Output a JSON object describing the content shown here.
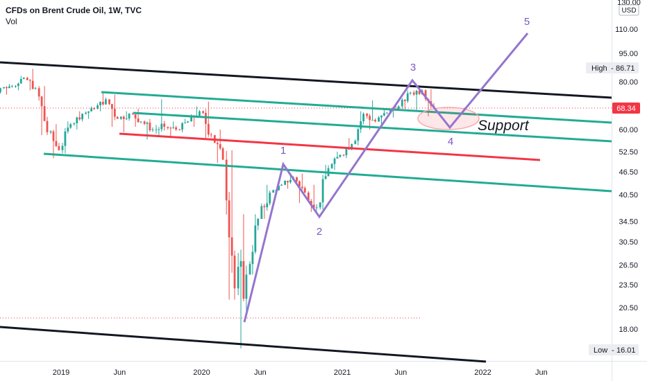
{
  "legend": {
    "title": "CFDs on Brent Crude Oil, 1W, TVC",
    "indicator": "Vol"
  },
  "price_axis": {
    "currency": "USD",
    "top_label": "130.00",
    "ticks": [
      "110.00",
      "95.00",
      "80.00",
      "60.00",
      "52.50",
      "46.50",
      "40.50",
      "34.50",
      "30.50",
      "26.50",
      "23.50",
      "20.50",
      "18.00"
    ]
  },
  "badges": {
    "high": {
      "label": "High",
      "value": "86.71"
    },
    "last": {
      "value": "68.34"
    },
    "low": {
      "label": "Low",
      "value": "16.01"
    }
  },
  "time_axis": {
    "labels": [
      "2019",
      "Jun",
      "2020",
      "Jun",
      "2021",
      "Jun",
      "2022",
      "Jun"
    ]
  },
  "annotations": {
    "support_text": "Support",
    "wave_labels": [
      "1",
      "2",
      "3",
      "4",
      "5"
    ]
  },
  "colors": {
    "up": "#26a69a",
    "down": "#ef5350",
    "wave": "#9575cd",
    "channel": "#131722",
    "teal_line": "#22ab94",
    "red_line": "#f23645",
    "last_badge": "#f23645"
  },
  "chart_data": {
    "type": "candlestick",
    "scale": "log",
    "x_range": [
      "2018-06",
      "2022-08"
    ],
    "y_range": [
      16,
      130
    ],
    "series": [
      {
        "values": [
          {
            "t": "2018-07",
            "o": 74,
            "h": 79,
            "l": 72,
            "c": 77
          },
          {
            "t": "2018-08",
            "o": 77,
            "h": 79,
            "l": 74,
            "c": 78
          },
          {
            "t": "2018-09",
            "o": 78,
            "h": 83,
            "l": 76,
            "c": 82
          },
          {
            "t": "2018-10",
            "o": 82,
            "h": 86.5,
            "l": 76,
            "c": 77
          },
          {
            "t": "2018-11",
            "o": 77,
            "h": 78,
            "l": 58,
            "c": 59
          },
          {
            "t": "2018-12",
            "o": 59,
            "h": 62,
            "l": 50.5,
            "c": 53
          },
          {
            "t": "2019-01",
            "o": 53,
            "h": 63,
            "l": 52,
            "c": 62
          },
          {
            "t": "2019-02",
            "o": 62,
            "h": 67,
            "l": 60,
            "c": 66
          },
          {
            "t": "2019-03",
            "o": 66,
            "h": 69,
            "l": 64,
            "c": 68
          },
          {
            "t": "2019-04",
            "o": 68,
            "h": 75,
            "l": 67,
            "c": 72
          },
          {
            "t": "2019-05",
            "o": 72,
            "h": 74,
            "l": 61,
            "c": 64
          },
          {
            "t": "2019-06",
            "o": 64,
            "h": 67,
            "l": 59,
            "c": 66
          },
          {
            "t": "2019-07",
            "o": 66,
            "h": 68,
            "l": 61,
            "c": 63
          },
          {
            "t": "2019-08",
            "o": 63,
            "h": 64,
            "l": 56.5,
            "c": 60
          },
          {
            "t": "2019-09",
            "o": 60,
            "h": 72,
            "l": 58,
            "c": 61
          },
          {
            "t": "2019-10",
            "o": 61,
            "h": 63,
            "l": 57,
            "c": 60
          },
          {
            "t": "2019-11",
            "o": 60,
            "h": 64,
            "l": 59,
            "c": 63
          },
          {
            "t": "2019-12",
            "o": 63,
            "h": 69,
            "l": 61,
            "c": 67
          },
          {
            "t": "2020-01",
            "o": 67,
            "h": 71,
            "l": 57,
            "c": 58
          },
          {
            "t": "2020-02",
            "o": 58,
            "h": 60,
            "l": 49,
            "c": 50
          },
          {
            "t": "2020-03",
            "o": 50,
            "h": 53,
            "l": 21.5,
            "c": 23
          },
          {
            "t": "2020-04",
            "o": 23,
            "h": 36,
            "l": 16.01,
            "c": 25
          },
          {
            "t": "2020-05",
            "o": 25,
            "h": 36,
            "l": 25,
            "c": 35
          },
          {
            "t": "2020-06",
            "o": 35,
            "h": 43,
            "l": 35,
            "c": 41
          },
          {
            "t": "2020-07",
            "o": 41,
            "h": 44,
            "l": 41,
            "c": 43
          },
          {
            "t": "2020-08",
            "o": 43,
            "h": 46,
            "l": 42,
            "c": 45
          },
          {
            "t": "2020-09",
            "o": 45,
            "h": 46,
            "l": 38.5,
            "c": 41
          },
          {
            "t": "2020-10",
            "o": 41,
            "h": 43,
            "l": 36.5,
            "c": 37.5
          },
          {
            "t": "2020-11",
            "o": 37.5,
            "h": 48.5,
            "l": 37,
            "c": 47.5
          },
          {
            "t": "2020-12",
            "o": 47.5,
            "h": 52.5,
            "l": 47,
            "c": 51.5
          },
          {
            "t": "2021-01",
            "o": 51.5,
            "h": 57,
            "l": 50.5,
            "c": 55
          },
          {
            "t": "2021-02",
            "o": 55,
            "h": 67,
            "l": 54.5,
            "c": 66
          },
          {
            "t": "2021-03",
            "o": 66,
            "h": 71.5,
            "l": 60,
            "c": 63
          },
          {
            "t": "2021-04",
            "o": 63,
            "h": 68,
            "l": 61,
            "c": 66.5
          },
          {
            "t": "2021-05",
            "o": 66.5,
            "h": 70,
            "l": 64.5,
            "c": 69
          },
          {
            "t": "2021-06",
            "o": 69,
            "h": 76,
            "l": 68,
            "c": 75
          },
          {
            "t": "2021-07",
            "o": 75,
            "h": 77.5,
            "l": 67.5,
            "c": 76
          },
          {
            "t": "2021-08",
            "o": 76,
            "h": 76.5,
            "l": 65,
            "c": 68.34
          }
        ]
      }
    ],
    "high": 86.71,
    "low": 16.01,
    "last": 68.34,
    "grid": false,
    "legend": "top-left"
  }
}
